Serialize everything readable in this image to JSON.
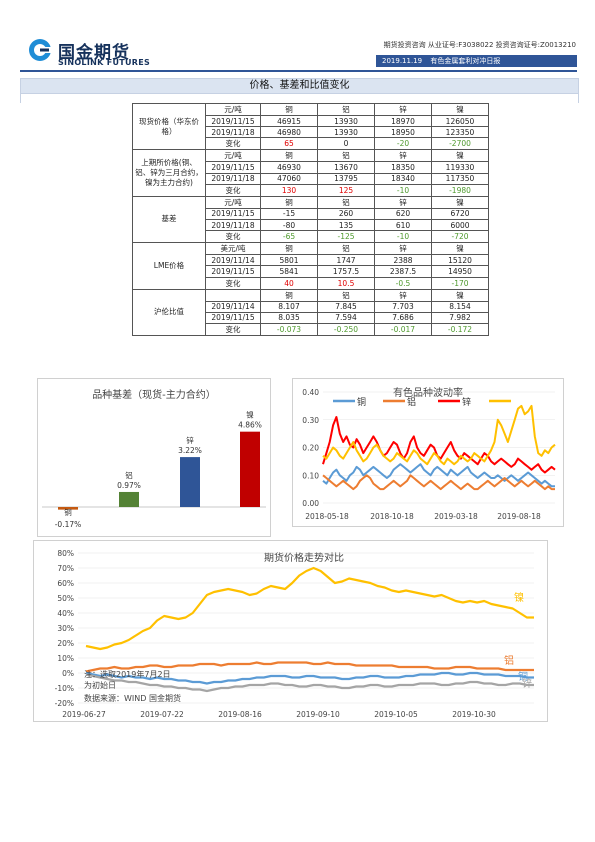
{
  "header": {
    "brand_cn": "国金期货",
    "brand_en": "SINOLINK FUTURES",
    "top_line": "期货投资咨询  从业证号:F3038022  投资咨询证号:Z0013210",
    "date": "2019.11.19",
    "report_title": "有色金属套利对冲日报"
  },
  "section_title": "价格、基差和比值变化",
  "table": {
    "groups": [
      {
        "label": "现货价格（华东价格）",
        "rows": [
          {
            "c1": "元/吨",
            "v": [
              "铜",
              "铝",
              "锌",
              "镍"
            ],
            "kind": "head"
          },
          {
            "c1": "2019/11/15",
            "v": [
              "46915",
              "13930",
              "18970",
              "126050"
            ],
            "kind": "val"
          },
          {
            "c1": "2019/11/18",
            "v": [
              "46980",
              "13930",
              "18950",
              "123350"
            ],
            "kind": "val"
          },
          {
            "c1": "变化",
            "v": [
              "65",
              "0",
              "-20",
              "-2700"
            ],
            "kind": "chg",
            "cls": [
              "up",
              "",
              "dn",
              "dn"
            ]
          }
        ]
      },
      {
        "label": "上期所价格(铜、铝、锌为三月合约，镍为主力合约)",
        "rows": [
          {
            "c1": "元/吨",
            "v": [
              "铜",
              "铝",
              "锌",
              "镍"
            ],
            "kind": "head"
          },
          {
            "c1": "2019/11/15",
            "v": [
              "46930",
              "13670",
              "18350",
              "119330"
            ],
            "kind": "val"
          },
          {
            "c1": "2019/11/18",
            "v": [
              "47060",
              "13795",
              "18340",
              "117350"
            ],
            "kind": "val"
          },
          {
            "c1": "变化",
            "v": [
              "130",
              "125",
              "-10",
              "-1980"
            ],
            "kind": "chg",
            "cls": [
              "up",
              "up",
              "dn",
              "dn"
            ]
          }
        ]
      },
      {
        "label": "基差",
        "rows": [
          {
            "c1": "元/吨",
            "v": [
              "铜",
              "铝",
              "锌",
              "镍"
            ],
            "kind": "head"
          },
          {
            "c1": "2019/11/15",
            "v": [
              "-15",
              "260",
              "620",
              "6720"
            ],
            "kind": "val"
          },
          {
            "c1": "2019/11/18",
            "v": [
              "-80",
              "135",
              "610",
              "6000"
            ],
            "kind": "val"
          },
          {
            "c1": "变化",
            "v": [
              "-65",
              "-125",
              "-10",
              "-720"
            ],
            "kind": "chg",
            "cls": [
              "dn",
              "dn",
              "dn",
              "dn"
            ]
          }
        ]
      },
      {
        "label": "LME价格",
        "rows": [
          {
            "c1": "美元/吨",
            "v": [
              "铜",
              "铝",
              "锌",
              "镍"
            ],
            "kind": "head"
          },
          {
            "c1": "2019/11/14",
            "v": [
              "5801",
              "1747",
              "2388",
              "15120"
            ],
            "kind": "val"
          },
          {
            "c1": "2019/11/15",
            "v": [
              "5841",
              "1757.5",
              "2387.5",
              "14950"
            ],
            "kind": "val"
          },
          {
            "c1": "变化",
            "v": [
              "40",
              "10.5",
              "-0.5",
              "-170"
            ],
            "kind": "chg",
            "cls": [
              "up",
              "up",
              "dn",
              "dn"
            ]
          }
        ]
      },
      {
        "label": "沪伦比值",
        "rows": [
          {
            "c1": "",
            "v": [
              "铜",
              "铝",
              "锌",
              "镍"
            ],
            "kind": "head"
          },
          {
            "c1": "2019/11/14",
            "v": [
              "8.107",
              "7.845",
              "7.703",
              "8.154"
            ],
            "kind": "val"
          },
          {
            "c1": "2019/11/15",
            "v": [
              "8.035",
              "7.594",
              "7.686",
              "7.982"
            ],
            "kind": "val"
          },
          {
            "c1": "变化",
            "v": [
              "-0.073",
              "-0.250",
              "-0.017",
              "-0.172"
            ],
            "kind": "chg",
            "cls": [
              "dn",
              "dn",
              "dn",
              "dn"
            ]
          }
        ]
      }
    ]
  },
  "chart_data": [
    {
      "type": "bar",
      "title": "品种基差（现货-主力合约）",
      "categories": [
        "铜",
        "铝",
        "锌",
        "镍"
      ],
      "values": [
        -0.17,
        0.97,
        3.22,
        4.86
      ],
      "value_labels": [
        "-0.17%",
        "0.97%",
        "3.22%",
        "4.86%"
      ],
      "colors": [
        "#c55a11",
        "#548235",
        "#2f5597",
        "#c00000"
      ],
      "ylim": [
        -0.5,
        5.5
      ]
    },
    {
      "type": "line",
      "title": "有色品种波动率",
      "x_ticks": [
        "2018-05-18",
        "2018-10-18",
        "2019-03-18",
        "2019-08-18"
      ],
      "y_ticks": [
        "0.00",
        "0.10",
        "0.20",
        "0.30",
        "0.40"
      ],
      "ylim": [
        0,
        0.4
      ],
      "legend_position": "top",
      "series": [
        {
          "name": "铜",
          "color": "#5b9bd5",
          "values": [
            0.08,
            0.07,
            0.09,
            0.11,
            0.12,
            0.1,
            0.09,
            0.08,
            0.1,
            0.11,
            0.13,
            0.12,
            0.1,
            0.11,
            0.12,
            0.13,
            0.12,
            0.11,
            0.1,
            0.09,
            0.1,
            0.12,
            0.13,
            0.14,
            0.13,
            0.12,
            0.11,
            0.12,
            0.13,
            0.14,
            0.12,
            0.11,
            0.1,
            0.12,
            0.13,
            0.12,
            0.11,
            0.1,
            0.12,
            0.11,
            0.1,
            0.11,
            0.12,
            0.13,
            0.11,
            0.1,
            0.09,
            0.1,
            0.11,
            0.1,
            0.09,
            0.09,
            0.1,
            0.09,
            0.08,
            0.09,
            0.1,
            0.09,
            0.08,
            0.09,
            0.1,
            0.11,
            0.1,
            0.09,
            0.08,
            0.07,
            0.08,
            0.07,
            0.06,
            0.06
          ]
        },
        {
          "name": "铝",
          "color": "#ed7d31",
          "values": [
            0.1,
            0.09,
            0.08,
            0.07,
            0.06,
            0.07,
            0.08,
            0.07,
            0.06,
            0.05,
            0.06,
            0.08,
            0.09,
            0.1,
            0.09,
            0.07,
            0.06,
            0.05,
            0.05,
            0.06,
            0.07,
            0.08,
            0.07,
            0.06,
            0.07,
            0.08,
            0.1,
            0.09,
            0.08,
            0.07,
            0.06,
            0.07,
            0.08,
            0.07,
            0.06,
            0.05,
            0.06,
            0.07,
            0.08,
            0.07,
            0.06,
            0.05,
            0.06,
            0.07,
            0.06,
            0.05,
            0.05,
            0.06,
            0.07,
            0.08,
            0.07,
            0.06,
            0.07,
            0.08,
            0.09,
            0.08,
            0.07,
            0.06,
            0.07,
            0.08,
            0.07,
            0.06,
            0.07,
            0.08,
            0.07,
            0.06,
            0.05,
            0.06,
            0.05,
            0.05
          ]
        },
        {
          "name": "锌",
          "color": "#ff0000",
          "values": [
            0.14,
            0.18,
            0.22,
            0.28,
            0.31,
            0.25,
            0.22,
            0.24,
            0.21,
            0.2,
            0.23,
            0.21,
            0.18,
            0.2,
            0.22,
            0.24,
            0.22,
            0.19,
            0.17,
            0.18,
            0.2,
            0.22,
            0.21,
            0.18,
            0.16,
            0.18,
            0.22,
            0.24,
            0.2,
            0.18,
            0.17,
            0.19,
            0.21,
            0.2,
            0.17,
            0.16,
            0.18,
            0.2,
            0.22,
            0.19,
            0.17,
            0.16,
            0.18,
            0.17,
            0.16,
            0.15,
            0.14,
            0.16,
            0.18,
            0.17,
            0.15,
            0.14,
            0.15,
            0.16,
            0.15,
            0.14,
            0.13,
            0.14,
            0.16,
            0.15,
            0.14,
            0.13,
            0.12,
            0.13,
            0.14,
            0.12,
            0.11,
            0.12,
            0.13,
            0.12
          ]
        },
        {
          "name": "",
          "color": "#ffc000",
          "values": [
            0.17,
            0.16,
            0.18,
            0.2,
            0.19,
            0.17,
            0.16,
            0.18,
            0.2,
            0.22,
            0.19,
            0.17,
            0.15,
            0.16,
            0.18,
            0.2,
            0.21,
            0.19,
            0.17,
            0.16,
            0.15,
            0.16,
            0.18,
            0.17,
            0.16,
            0.15,
            0.17,
            0.19,
            0.18,
            0.16,
            0.15,
            0.14,
            0.16,
            0.18,
            0.17,
            0.15,
            0.14,
            0.16,
            0.15,
            0.14,
            0.15,
            0.17,
            0.16,
            0.15,
            0.16,
            0.18,
            0.17,
            0.16,
            0.15,
            0.17,
            0.19,
            0.22,
            0.3,
            0.28,
            0.25,
            0.22,
            0.26,
            0.3,
            0.34,
            0.35,
            0.32,
            0.33,
            0.35,
            0.24,
            0.18,
            0.17,
            0.19,
            0.18,
            0.2,
            0.21
          ]
        }
      ]
    },
    {
      "type": "line",
      "title": "期货价格走势对比",
      "x_ticks": [
        "2019-06-27",
        "2019-07-22",
        "2019-08-16",
        "2019-09-10",
        "2019-10-05",
        "2019-10-30"
      ],
      "y_ticks": [
        "80%",
        "70%",
        "60%",
        "50%",
        "40%",
        "30%",
        "20%",
        "10%",
        "0%",
        "-10%",
        "-20%"
      ],
      "ylim": [
        -20,
        80
      ],
      "series": [
        {
          "name": "镍",
          "color": "#ffc000",
          "values": [
            18,
            17,
            16,
            17,
            19,
            20,
            22,
            25,
            28,
            30,
            35,
            38,
            37,
            36,
            37,
            40,
            46,
            52,
            54,
            55,
            56,
            55,
            54,
            52,
            53,
            56,
            58,
            57,
            56,
            60,
            65,
            68,
            70,
            68,
            64,
            60,
            61,
            63,
            62,
            61,
            60,
            58,
            57,
            55,
            54,
            55,
            54,
            53,
            52,
            51,
            52,
            50,
            48,
            47,
            48,
            47,
            48,
            46,
            45,
            44,
            43,
            40,
            37,
            37
          ]
        },
        {
          "name": "铝",
          "color": "#ed7d31",
          "values": [
            1,
            2,
            3,
            3,
            4,
            3,
            3,
            4,
            4,
            5,
            5,
            4,
            4,
            5,
            5,
            5,
            6,
            6,
            6,
            5,
            6,
            6,
            6,
            6,
            7,
            6,
            6,
            7,
            7,
            7,
            7,
            7,
            6,
            6,
            7,
            6,
            6,
            6,
            5,
            5,
            5,
            5,
            5,
            5,
            4,
            4,
            4,
            4,
            4,
            3,
            3,
            3,
            4,
            4,
            4,
            3,
            3,
            3,
            3,
            2,
            2,
            2,
            2,
            2
          ]
        },
        {
          "name": "铜",
          "color": "#5b9bd5",
          "values": [
            0,
            -1,
            -2,
            -1,
            -2,
            -3,
            -2,
            -3,
            -3,
            -4,
            -3,
            -4,
            -4,
            -5,
            -5,
            -6,
            -6,
            -7,
            -6,
            -6,
            -5,
            -5,
            -4,
            -4,
            -3,
            -3,
            -2,
            -2,
            -2,
            -3,
            -3,
            -2,
            -2,
            -3,
            -3,
            -3,
            -4,
            -4,
            -3,
            -3,
            -2,
            -2,
            -3,
            -3,
            -3,
            -2,
            -2,
            -1,
            -1,
            -1,
            0,
            0,
            -1,
            -1,
            0,
            0,
            -1,
            -1,
            -1,
            -2,
            -2,
            -2,
            -3,
            -3
          ]
        },
        {
          "name": "锌",
          "color": "#a5a5a5",
          "values": [
            -1,
            -2,
            -3,
            -4,
            -5,
            -5,
            -6,
            -6,
            -7,
            -8,
            -8,
            -9,
            -9,
            -10,
            -10,
            -11,
            -11,
            -12,
            -11,
            -10,
            -10,
            -9,
            -9,
            -8,
            -8,
            -8,
            -7,
            -7,
            -8,
            -8,
            -9,
            -9,
            -8,
            -8,
            -9,
            -9,
            -10,
            -10,
            -9,
            -9,
            -8,
            -8,
            -9,
            -9,
            -8,
            -8,
            -8,
            -7,
            -7,
            -7,
            -8,
            -8,
            -7,
            -7,
            -6,
            -6,
            -7,
            -7,
            -8,
            -8,
            -7,
            -7,
            -8,
            -8
          ]
        }
      ],
      "note_lines": [
        "注：选取2019年7月2日",
        "为初始日"
      ],
      "source": "数据来源：WIND 国金期货"
    }
  ]
}
